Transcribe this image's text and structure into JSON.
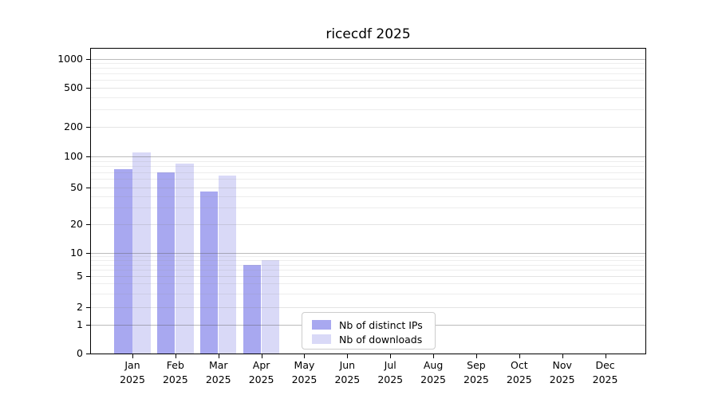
{
  "title": "ricecdf 2025",
  "chart_data": {
    "type": "bar",
    "categories": [
      "Jan",
      "Feb",
      "Mar",
      "Apr",
      "May",
      "Jun",
      "Jul",
      "Aug",
      "Sep",
      "Oct",
      "Nov",
      "Dec"
    ],
    "year": "2025",
    "series": [
      {
        "name": "Nb of distinct IPs",
        "color": "#a8a8f0",
        "values": [
          75,
          70,
          45,
          7,
          0,
          0,
          0,
          0,
          0,
          0,
          0,
          0
        ]
      },
      {
        "name": "Nb of downloads",
        "color": "#d9d9f7",
        "values": [
          110,
          85,
          65,
          8,
          0,
          0,
          0,
          0,
          0,
          0,
          0,
          0
        ]
      }
    ],
    "yticks": [
      0,
      1,
      2,
      5,
      10,
      20,
      50,
      100,
      200,
      500,
      1000
    ],
    "y_major_ticks": [
      1,
      10,
      100,
      1000
    ],
    "y_minor_gridlines": [
      3,
      4,
      6,
      7,
      8,
      9,
      30,
      40,
      60,
      70,
      80,
      90,
      300,
      400,
      600,
      700,
      800,
      900
    ],
    "yscale": "log-like (compressed near origin, 0 baseline)",
    "ylim": [
      0,
      1250
    ],
    "grid": true,
    "legend_position": "bottom-center-inside",
    "title": "ricecdf 2025"
  },
  "colors": {
    "background": "#ffffff",
    "spine": "#000000",
    "grid_major": "#bababa",
    "grid_minor": "#e9e9e9",
    "legend_border": "#cccccc"
  }
}
